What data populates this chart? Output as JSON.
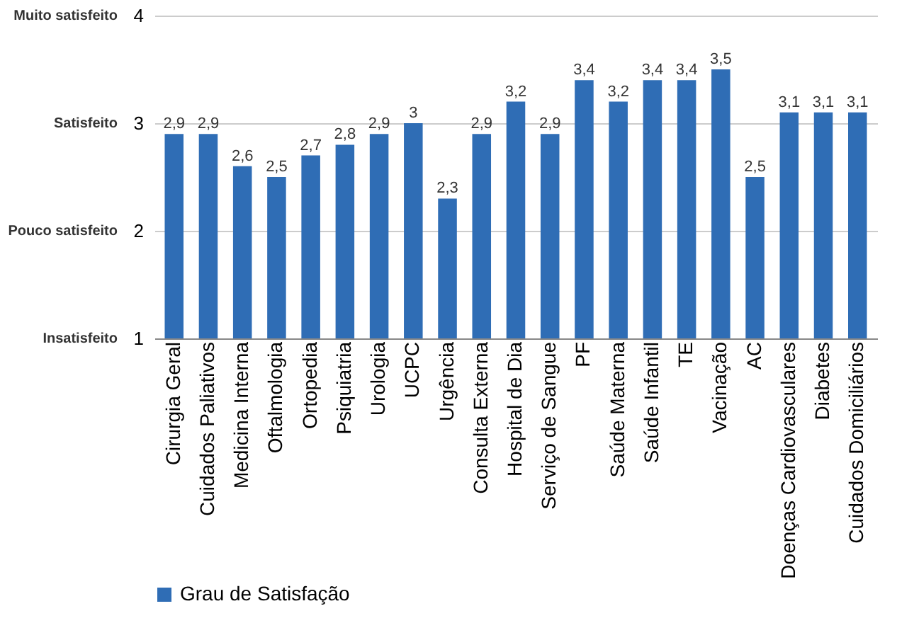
{
  "chart_data": {
    "type": "bar",
    "categories": [
      "Cirurgia Geral",
      "Cuidados Paliativos",
      "Medicina Interna",
      "Oftalmologia",
      "Ortopedia",
      "Psiquiatria",
      "Urologia",
      "UCPC",
      "Urgência",
      "Consulta Externa",
      "Hospital de Dia",
      "Serviço de Sangue",
      "PF",
      "Saúde Materna",
      "Saúde Infantil",
      "TE",
      "Vacinação",
      "AC",
      "Doenças Cardiovasculares",
      "Diabetes",
      "Cuidados Domiciliários"
    ],
    "series": [
      {
        "name": "Grau de Satisfação",
        "color": "#2f6db5",
        "values": [
          2.9,
          2.9,
          2.6,
          2.5,
          2.7,
          2.8,
          2.9,
          3,
          2.3,
          2.9,
          3.2,
          2.9,
          3.4,
          3.2,
          3.4,
          3.4,
          3.5,
          2.5,
          3.1,
          3.1,
          3.1
        ],
        "value_labels": [
          "2,9",
          "2,9",
          "2,6",
          "2,5",
          "2,7",
          "2,8",
          "2,9",
          "3",
          "2,3",
          "2,9",
          "3,2",
          "2,9",
          "3,4",
          "3,2",
          "3,4",
          "3,4",
          "3,5",
          "2,5",
          "3,1",
          "3,1",
          "3,1"
        ]
      }
    ],
    "ylim": [
      1,
      4
    ],
    "yticks": [
      1,
      2,
      3,
      4
    ],
    "annotations": [
      "Insatisfeito",
      "Pouco satisfeito",
      "Satisfeito",
      "Muito satisfeito"
    ],
    "grid": "y",
    "legend": "bottom left"
  }
}
